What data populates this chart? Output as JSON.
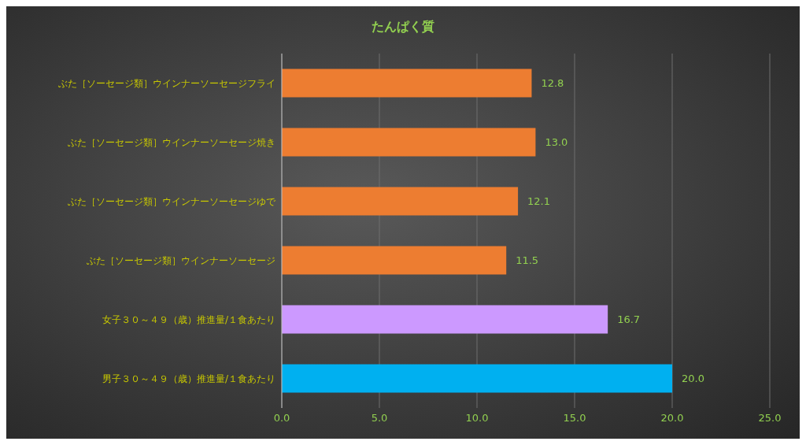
{
  "chart_data": {
    "type": "bar",
    "orientation": "horizontal",
    "title": "たんぱく質",
    "categories": [
      "ぶた［ソーセージ類］ウインナーソーセージフライ",
      "ぶた［ソーセージ類］ウインナーソーセージ焼き",
      "ぶた［ソーセージ類］ウインナーソーセージゆで",
      "ぶた［ソーセージ類］ウインナーソーセージ",
      "女子３０～４９（歳）推進量/１食あたり",
      "男子３０～４９（歳）推進量/１食あたり"
    ],
    "values": [
      12.8,
      13.0,
      12.1,
      11.5,
      16.7,
      20.0
    ],
    "colors": [
      "#ed7d31",
      "#ed7d31",
      "#ed7d31",
      "#ed7d31",
      "#cc99ff",
      "#00b0f0"
    ],
    "value_labels": [
      "12.8",
      "13.0",
      "12.1",
      "11.5",
      "16.7",
      "20.0"
    ],
    "xlim": [
      0,
      25
    ],
    "xticks": [
      {
        "value": 0,
        "label": "0.0"
      },
      {
        "value": 5,
        "label": "5.0"
      },
      {
        "value": 10,
        "label": "10.0"
      },
      {
        "value": 15,
        "label": "15.0"
      },
      {
        "value": 20,
        "label": "20.0"
      },
      {
        "value": 25,
        "label": "25.0"
      }
    ],
    "grid": "x"
  }
}
